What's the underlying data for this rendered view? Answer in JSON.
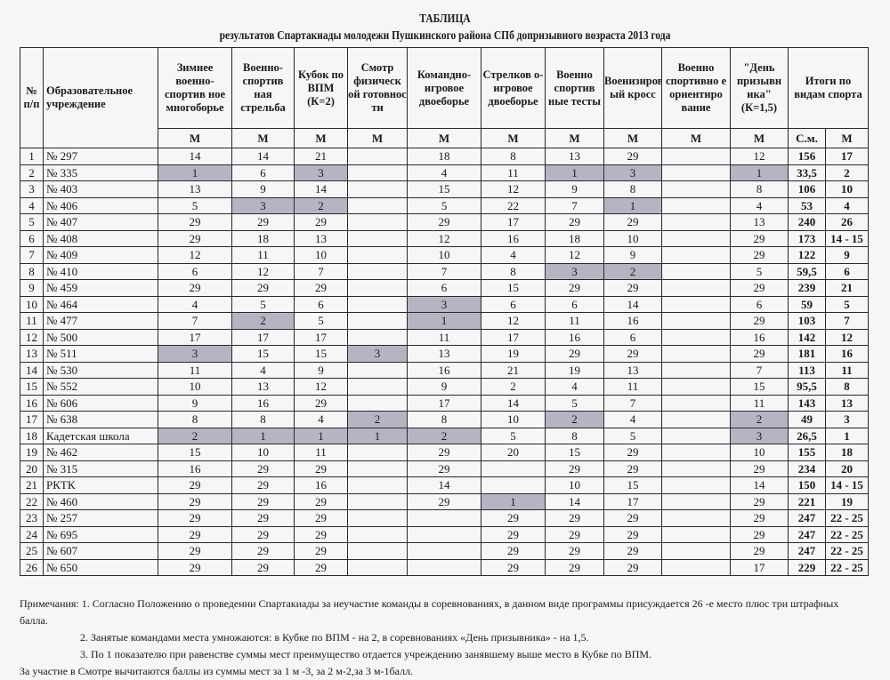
{
  "title": "ТАБЛИЦА",
  "subtitle": "результатов Спартакиады молодежи Пушкинского района СПб допризывного возраста 2013 года",
  "headers": {
    "num": "№ п/п",
    "institution": "Образовательное учреждение",
    "sports": [
      "Зимнее военно-спортив ное многоборье",
      "Военно-спортив ная стрельба",
      "Кубок по ВПМ (К=2)",
      "Смотр физическ ой готовнос ти",
      "Командно-игровое двоеборье",
      "Стрелков о-игровое двоеборье",
      "Военно спортив ные тесты",
      "Военизированн ый кросс",
      "Военно спортивно е ориентиро вание",
      "\"День призывн ика\" (К=1,5)"
    ],
    "totals": "Итоги по видам спорта",
    "sub_m": "М",
    "sub_sum": "С.м."
  },
  "highlight_color": "#b8b3c3",
  "rows": [
    {
      "n": "1",
      "name": "№ 297",
      "v": [
        "14",
        "14",
        "21",
        "",
        "18",
        "8",
        "13",
        "29",
        "",
        "12"
      ],
      "sum": "156",
      "place": "17",
      "hl": []
    },
    {
      "n": "2",
      "name": "№ 335",
      "v": [
        "1",
        "6",
        "3",
        "",
        "4",
        "11",
        "1",
        "3",
        "",
        "1"
      ],
      "sum": "33,5",
      "place": "2",
      "hl": [
        0,
        2,
        6,
        7,
        9
      ]
    },
    {
      "n": "3",
      "name": "№ 403",
      "v": [
        "13",
        "9",
        "14",
        "",
        "15",
        "12",
        "9",
        "8",
        "",
        "8"
      ],
      "sum": "106",
      "place": "10",
      "hl": []
    },
    {
      "n": "4",
      "name": "№ 406",
      "v": [
        "5",
        "3",
        "2",
        "",
        "5",
        "22",
        "7",
        "1",
        "",
        "4"
      ],
      "sum": "53",
      "place": "4",
      "hl": [
        1,
        2,
        7
      ]
    },
    {
      "n": "5",
      "name": "№ 407",
      "v": [
        "29",
        "29",
        "29",
        "",
        "29",
        "17",
        "29",
        "29",
        "",
        "13"
      ],
      "sum": "240",
      "place": "26",
      "hl": []
    },
    {
      "n": "6",
      "name": "№ 408",
      "v": [
        "29",
        "18",
        "13",
        "",
        "12",
        "16",
        "18",
        "10",
        "",
        "29"
      ],
      "sum": "173",
      "place": "14 - 15",
      "hl": []
    },
    {
      "n": "7",
      "name": "№ 409",
      "v": [
        "12",
        "11",
        "10",
        "",
        "10",
        "4",
        "12",
        "9",
        "",
        "29"
      ],
      "sum": "122",
      "place": "9",
      "hl": []
    },
    {
      "n": "8",
      "name": "№ 410",
      "v": [
        "6",
        "12",
        "7",
        "",
        "7",
        "8",
        "3",
        "2",
        "",
        "5"
      ],
      "sum": "59,5",
      "place": "6",
      "hl": [
        6,
        7
      ]
    },
    {
      "n": "9",
      "name": "№ 459",
      "v": [
        "29",
        "29",
        "29",
        "",
        "6",
        "15",
        "29",
        "29",
        "",
        "29"
      ],
      "sum": "239",
      "place": "21",
      "hl": []
    },
    {
      "n": "10",
      "name": "№ 464",
      "v": [
        "4",
        "5",
        "6",
        "",
        "3",
        "6",
        "6",
        "14",
        "",
        "6"
      ],
      "sum": "59",
      "place": "5",
      "hl": [
        4
      ]
    },
    {
      "n": "11",
      "name": "№ 477",
      "v": [
        "7",
        "2",
        "5",
        "",
        "1",
        "12",
        "11",
        "16",
        "",
        "29"
      ],
      "sum": "103",
      "place": "7",
      "hl": [
        1,
        4
      ]
    },
    {
      "n": "12",
      "name": "№ 500",
      "v": [
        "17",
        "17",
        "17",
        "",
        "11",
        "17",
        "16",
        "6",
        "",
        "16"
      ],
      "sum": "142",
      "place": "12",
      "hl": []
    },
    {
      "n": "13",
      "name": "№ 511",
      "v": [
        "3",
        "15",
        "15",
        "3",
        "13",
        "19",
        "29",
        "29",
        "",
        "29"
      ],
      "sum": "181",
      "place": "16",
      "hl": [
        0,
        3
      ]
    },
    {
      "n": "14",
      "name": "№ 530",
      "v": [
        "11",
        "4",
        "9",
        "",
        "16",
        "21",
        "19",
        "13",
        "",
        "7"
      ],
      "sum": "113",
      "place": "11",
      "hl": []
    },
    {
      "n": "15",
      "name": "№ 552",
      "v": [
        "10",
        "13",
        "12",
        "",
        "9",
        "2",
        "4",
        "11",
        "",
        "15"
      ],
      "sum": "95,5",
      "place": "8",
      "hl": []
    },
    {
      "n": "16",
      "name": "№ 606",
      "v": [
        "9",
        "16",
        "29",
        "",
        "17",
        "14",
        "5",
        "7",
        "",
        "11"
      ],
      "sum": "143",
      "place": "13",
      "hl": []
    },
    {
      "n": "17",
      "name": "№ 638",
      "v": [
        "8",
        "8",
        "4",
        "2",
        "8",
        "10",
        "2",
        "4",
        "",
        "2"
      ],
      "sum": "49",
      "place": "3",
      "hl": [
        3,
        6,
        9
      ]
    },
    {
      "n": "18",
      "name": "Кадетская школа",
      "v": [
        "2",
        "1",
        "1",
        "1",
        "2",
        "5",
        "8",
        "5",
        "",
        "3"
      ],
      "sum": "26,5",
      "place": "1",
      "hl": [
        0,
        1,
        2,
        3,
        4,
        9
      ]
    },
    {
      "n": "19",
      "name": "№ 462",
      "v": [
        "15",
        "10",
        "11",
        "",
        "29",
        "20",
        "15",
        "29",
        "",
        "10"
      ],
      "sum": "155",
      "place": "18",
      "hl": []
    },
    {
      "n": "20",
      "name": "№ 315",
      "v": [
        "16",
        "29",
        "29",
        "",
        "29",
        "",
        "29",
        "29",
        "",
        "29"
      ],
      "sum": "234",
      "place": "20",
      "hl": []
    },
    {
      "n": "21",
      "name": "РКТК",
      "v": [
        "29",
        "29",
        "16",
        "",
        "14",
        "",
        "10",
        "15",
        "",
        "14"
      ],
      "sum": "150",
      "place": "14 - 15",
      "hl": []
    },
    {
      "n": "22",
      "name": "№ 460",
      "v": [
        "29",
        "29",
        "29",
        "",
        "29",
        "1",
        "14",
        "17",
        "",
        "29"
      ],
      "sum": "221",
      "place": "19",
      "hl": [
        5
      ]
    },
    {
      "n": "23",
      "name": "№ 257",
      "v": [
        "29",
        "29",
        "29",
        "",
        "",
        "29",
        "29",
        "29",
        "",
        "29"
      ],
      "sum": "247",
      "place": "22 - 25",
      "hl": []
    },
    {
      "n": "24",
      "name": "№ 695",
      "v": [
        "29",
        "29",
        "29",
        "",
        "",
        "29",
        "29",
        "29",
        "",
        "29"
      ],
      "sum": "247",
      "place": "22 - 25",
      "hl": []
    },
    {
      "n": "25",
      "name": "№ 607",
      "v": [
        "29",
        "29",
        "29",
        "",
        "",
        "29",
        "29",
        "29",
        "",
        "29"
      ],
      "sum": "247",
      "place": "22 - 25",
      "hl": []
    },
    {
      "n": "26",
      "name": "№ 650",
      "v": [
        "29",
        "29",
        "29",
        "",
        "",
        "29",
        "29",
        "29",
        "",
        "17"
      ],
      "sum": "229",
      "place": "22 - 25",
      "hl": []
    }
  ],
  "notes": {
    "n1a": "Примечания: 1. Согласно Положению о проведении Спартакиады за неучастие команды в соревнованиях, в данном виде программы присуждается   26 -е  место плюс три штрафных",
    "n1b": "балла.",
    "n2": "2. Занятые командами места умножаются: в Кубке по ВПМ - на 2, в соревнованиях «День призывника» - на 1,5.",
    "n3": "3. По 1 показателю при равенстве суммы мест преимущество отдается учреждению занявшему выше место в Кубке по ВПМ.",
    "n4": "За участие в Смотре вычитаются баллы из суммы мест за 1 м -3, за 2 м-2,за 3 м-1балл."
  }
}
